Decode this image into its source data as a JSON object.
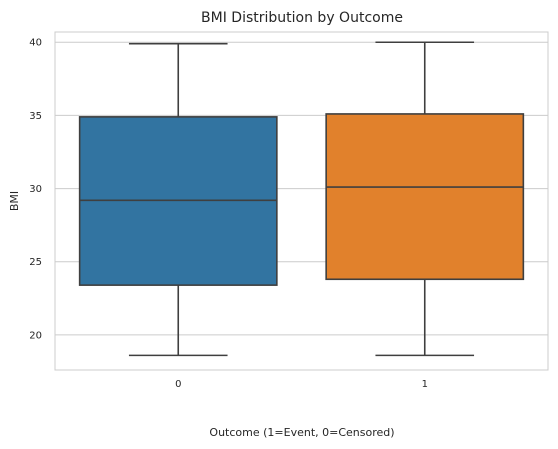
{
  "chart_data": {
    "type": "box",
    "title": "BMI Distribution by Outcome",
    "xlabel": "Outcome (1=Event, 0=Censored)",
    "ylabel": "BMI",
    "categories": [
      "0",
      "1"
    ],
    "ylim": [
      17.6,
      40.7
    ],
    "yticks": [
      20,
      25,
      30,
      35,
      40
    ],
    "grid": "y",
    "boxes": [
      {
        "category": "0",
        "whisker_low": 18.6,
        "q1": 23.4,
        "median": 29.2,
        "q3": 34.9,
        "whisker_high": 39.9,
        "color": "#3274a1"
      },
      {
        "category": "1",
        "whisker_low": 18.6,
        "q1": 23.8,
        "median": 30.1,
        "q3": 35.1,
        "whisker_high": 40.0,
        "color": "#e1812c"
      }
    ]
  }
}
